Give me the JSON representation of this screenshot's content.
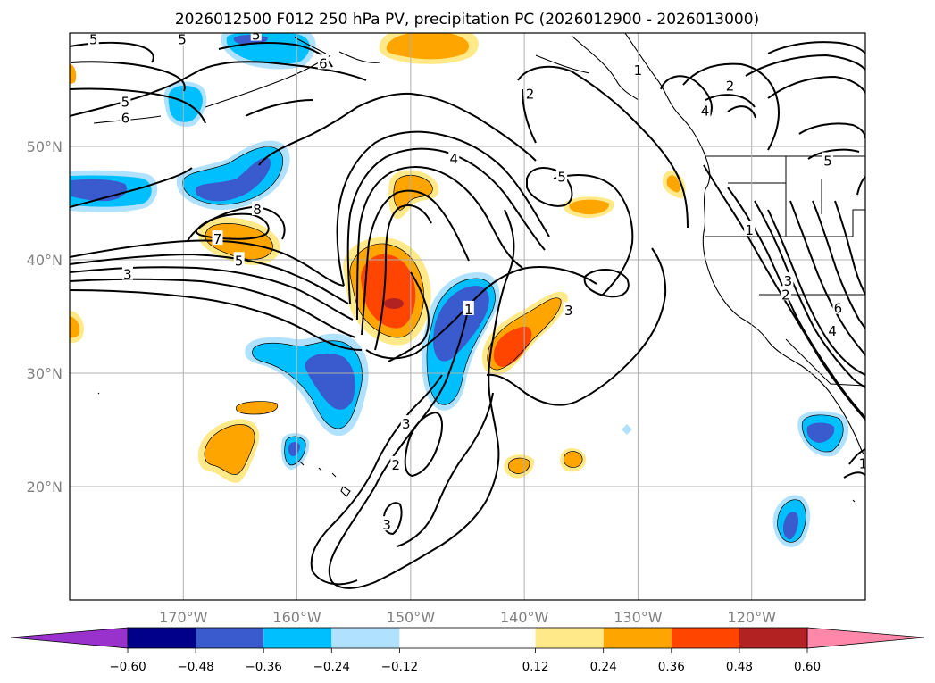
{
  "chart_data": {
    "type": "heatmap",
    "title": "2026012500 F012 250 hPa PV, precipitation PC (2026012900 - 2026013000)",
    "xlabel": "",
    "ylabel": "",
    "xlim": [
      -180,
      -110
    ],
    "ylim": [
      10,
      60
    ],
    "grid": true,
    "x_ticks": [
      {
        "value": -170,
        "label": "170°W"
      },
      {
        "value": -160,
        "label": "160°W"
      },
      {
        "value": -150,
        "label": "150°W"
      },
      {
        "value": -140,
        "label": "140°W"
      },
      {
        "value": -130,
        "label": "130°W"
      },
      {
        "value": -120,
        "label": "120°W"
      }
    ],
    "y_ticks": [
      {
        "value": 20,
        "label": "20°N"
      },
      {
        "value": 30,
        "label": "30°N"
      },
      {
        "value": 40,
        "label": "40°N"
      },
      {
        "value": 50,
        "label": "50°N"
      }
    ],
    "colorbar": {
      "extend": "both",
      "boundaries": [
        -0.72,
        -0.6,
        -0.48,
        -0.36,
        -0.24,
        -0.12,
        0.12,
        0.24,
        0.36,
        0.48,
        0.6,
        0.72
      ],
      "colors": [
        "#9932cc",
        "#00008b",
        "#3a5bcd",
        "#00bfff",
        "#b0e2ff",
        "#ffffff",
        "#ffe988",
        "#ffa500",
        "#ff4500",
        "#b22222",
        "#ff88aa"
      ],
      "ticks": [
        "−0.60",
        "−0.48",
        "−0.36",
        "−0.24",
        "−0.12",
        "0.12",
        "0.24",
        "0.36",
        "0.48",
        "0.60"
      ]
    },
    "pv_contour_labels": [
      {
        "text": "5",
        "lon": -177.9,
        "lat": 59.4
      },
      {
        "text": "5",
        "lon": -170.1,
        "lat": 59.4
      },
      {
        "text": "5",
        "lon": -163.6,
        "lat": 59.8
      },
      {
        "text": "6",
        "lon": -157.7,
        "lat": 57.3
      },
      {
        "text": "5",
        "lon": -175.1,
        "lat": 53.9
      },
      {
        "text": "6",
        "lon": -175.1,
        "lat": 52.5
      },
      {
        "text": "8",
        "lon": -163.5,
        "lat": 44.4
      },
      {
        "text": "7",
        "lon": -167.0,
        "lat": 41.8
      },
      {
        "text": "5",
        "lon": -165.1,
        "lat": 39.9
      },
      {
        "text": "3",
        "lon": -174.9,
        "lat": 38.7
      },
      {
        "text": "2",
        "lon": -139.5,
        "lat": 54.6
      },
      {
        "text": "4",
        "lon": -146.2,
        "lat": 48.9
      },
      {
        "text": "5",
        "lon": -136.7,
        "lat": 47.3
      },
      {
        "text": "1",
        "lon": -130.0,
        "lat": 56.7
      },
      {
        "text": "2",
        "lon": -121.9,
        "lat": 55.3
      },
      {
        "text": "4",
        "lon": -124.1,
        "lat": 53.1
      },
      {
        "text": "5",
        "lon": -113.3,
        "lat": 48.7
      },
      {
        "text": "1",
        "lon": -120.2,
        "lat": 42.6
      },
      {
        "text": "3",
        "lon": -136.1,
        "lat": 35.5
      },
      {
        "text": "1",
        "lon": -144.9,
        "lat": 35.6
      },
      {
        "text": "3",
        "lon": -116.8,
        "lat": 38.1
      },
      {
        "text": "2",
        "lon": -117.0,
        "lat": 36.9
      },
      {
        "text": "6",
        "lon": -112.4,
        "lat": 35.7
      },
      {
        "text": "4",
        "lon": -112.9,
        "lat": 33.7
      },
      {
        "text": "3",
        "lon": -150.4,
        "lat": 25.5
      },
      {
        "text": "2",
        "lon": -151.3,
        "lat": 21.9
      },
      {
        "text": "3",
        "lon": -152.1,
        "lat": 16.6
      },
      {
        "text": "1",
        "lon": -110.2,
        "lat": 22.0
      }
    ]
  }
}
